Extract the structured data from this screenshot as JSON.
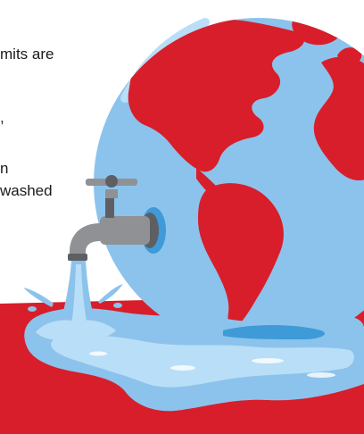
{
  "text_lines": [
    "mits are",
    ",",
    "n",
    "washed"
  ],
  "colors": {
    "background": "#ffffff",
    "text": "#1a1a1a",
    "land_red": "#d81e2a",
    "ocean_blue": "#8cc3ec",
    "water_light": "#b9def7",
    "water_deep": "#3f9ad8",
    "faucet_gray": "#8f9195",
    "faucet_dark": "#5d5f63"
  },
  "icons": [
    "globe-icon",
    "faucet-icon",
    "water-stream-icon",
    "water-puddle-icon"
  ]
}
